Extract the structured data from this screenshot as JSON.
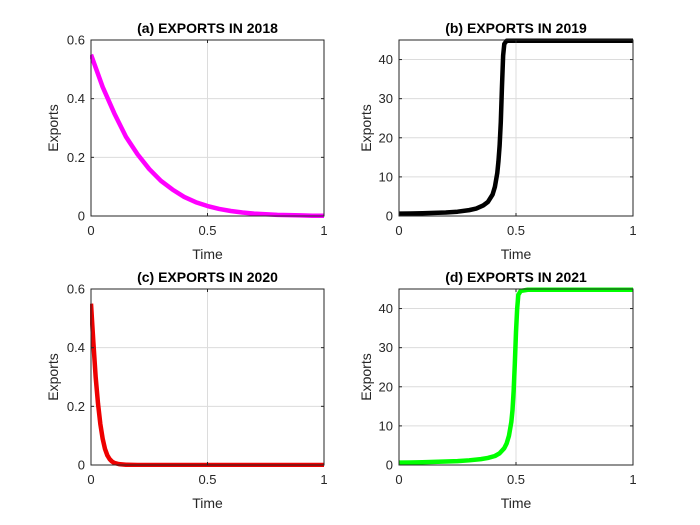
{
  "chart_data": [
    {
      "type": "line",
      "title": "(a) EXPORTS IN 2018",
      "xlabel": "Time",
      "ylabel": "Exports",
      "xlim": [
        0,
        1
      ],
      "ylim": [
        0,
        0.6
      ],
      "xticks": [
        "0",
        "0.5",
        "1"
      ],
      "xtick_values": [
        0,
        0.5,
        1
      ],
      "yticks": [
        "0",
        "0.2",
        "0.4",
        "0.6"
      ],
      "ytick_values": [
        0,
        0.2,
        0.4,
        0.6
      ],
      "grid": true,
      "series": [
        {
          "color": "#ff00ff",
          "x": [
            0,
            0.05,
            0.1,
            0.15,
            0.2,
            0.25,
            0.3,
            0.35,
            0.4,
            0.45,
            0.5,
            0.55,
            0.6,
            0.65,
            0.7,
            0.75,
            0.8,
            0.85,
            0.9,
            0.95,
            1.0
          ],
          "y": [
            0.55,
            0.44,
            0.35,
            0.27,
            0.21,
            0.16,
            0.12,
            0.09,
            0.065,
            0.047,
            0.034,
            0.024,
            0.017,
            0.012,
            0.008,
            0.006,
            0.004,
            0.003,
            0.002,
            0.001,
            0.001
          ]
        }
      ]
    },
    {
      "type": "line",
      "title": "(b) EXPORTS IN 2019",
      "xlabel": "Time",
      "ylabel": "Exports",
      "xlim": [
        0,
        1
      ],
      "ylim": [
        0,
        45
      ],
      "xticks": [
        "0",
        "0.5",
        "1"
      ],
      "xtick_values": [
        0,
        0.5,
        1
      ],
      "yticks": [
        "0",
        "10",
        "20",
        "30",
        "40"
      ],
      "ytick_values": [
        0,
        10,
        20,
        30,
        40
      ],
      "grid": true,
      "series": [
        {
          "color": "#000000",
          "x": [
            0,
            0.05,
            0.1,
            0.15,
            0.2,
            0.25,
            0.3,
            0.33,
            0.36,
            0.38,
            0.4,
            0.41,
            0.42,
            0.425,
            0.43,
            0.435,
            0.44,
            0.445,
            0.45,
            0.46,
            0.5,
            0.6,
            0.8,
            1.0
          ],
          "y": [
            0.6,
            0.65,
            0.7,
            0.8,
            0.9,
            1.1,
            1.5,
            1.9,
            2.7,
            3.6,
            5.5,
            7.5,
            11,
            14,
            18,
            24,
            33,
            41,
            44,
            44.8,
            44.8,
            44.8,
            44.8,
            44.8
          ]
        }
      ]
    },
    {
      "type": "line",
      "title": "(c) EXPORTS IN 2020",
      "xlabel": "Time",
      "ylabel": "Exports",
      "xlim": [
        0,
        1
      ],
      "ylim": [
        0,
        0.6
      ],
      "xticks": [
        "0",
        "0.5",
        "1"
      ],
      "xtick_values": [
        0,
        0.5,
        1
      ],
      "yticks": [
        "0",
        "0.2",
        "0.4",
        "0.6"
      ],
      "ytick_values": [
        0,
        0.2,
        0.4,
        0.6
      ],
      "grid": true,
      "series": [
        {
          "color": "#ee0000",
          "x": [
            0,
            0.01,
            0.02,
            0.03,
            0.04,
            0.05,
            0.06,
            0.07,
            0.08,
            0.09,
            0.1,
            0.12,
            0.15,
            0.2,
            0.3,
            0.5,
            0.7,
            1.0
          ],
          "y": [
            0.55,
            0.42,
            0.3,
            0.21,
            0.14,
            0.09,
            0.055,
            0.033,
            0.02,
            0.012,
            0.007,
            0.003,
            0.001,
            0,
            0,
            0,
            0,
            0
          ]
        }
      ]
    },
    {
      "type": "line",
      "title": "(d) EXPORTS IN 2021",
      "xlabel": "Time",
      "ylabel": "Exports",
      "xlim": [
        0,
        1
      ],
      "ylim": [
        0,
        45
      ],
      "xticks": [
        "0",
        "0.5",
        "1"
      ],
      "xtick_values": [
        0,
        0.5,
        1
      ],
      "yticks": [
        "0",
        "10",
        "20",
        "30",
        "40"
      ],
      "ytick_values": [
        0,
        10,
        20,
        30,
        40
      ],
      "grid": true,
      "series": [
        {
          "color": "#00ff00",
          "x": [
            0,
            0.05,
            0.1,
            0.15,
            0.2,
            0.25,
            0.3,
            0.35,
            0.38,
            0.41,
            0.43,
            0.45,
            0.46,
            0.47,
            0.48,
            0.485,
            0.49,
            0.495,
            0.5,
            0.505,
            0.51,
            0.52,
            0.55,
            0.7,
            0.85,
            1.0
          ],
          "y": [
            0.6,
            0.65,
            0.7,
            0.8,
            0.9,
            1.0,
            1.2,
            1.5,
            1.8,
            2.3,
            3.0,
            4.3,
            5.5,
            7.5,
            11,
            14,
            19,
            26,
            34,
            40,
            43.5,
            44.5,
            44.8,
            44.8,
            44.8,
            44.8
          ]
        }
      ]
    }
  ]
}
